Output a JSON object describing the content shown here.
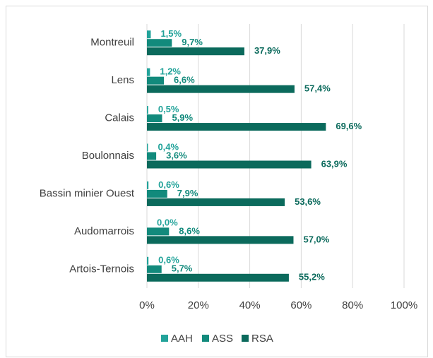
{
  "chart_data": {
    "type": "hbar",
    "categories": [
      "Montreuil",
      "Lens",
      "Calais",
      "Boulonnais",
      "Bassin minier Ouest",
      "Audomarrois",
      "Artois-Ternois"
    ],
    "series": [
      {
        "name": "AAH",
        "color": "#22a39a",
        "values": [
          1.5,
          1.2,
          0.5,
          0.4,
          0.6,
          0.0,
          0.6
        ],
        "value_labels": [
          "1,5%",
          "1,2%",
          "0,5%",
          "0,4%",
          "0,6%",
          "0,0%",
          "0,6%"
        ]
      },
      {
        "name": "ASS",
        "color": "#128a7c",
        "values": [
          9.7,
          6.6,
          5.9,
          3.6,
          7.9,
          8.6,
          5.7
        ],
        "value_labels": [
          "9,7%",
          "6,6%",
          "5,9%",
          "3,6%",
          "7,9%",
          "8,6%",
          "5,7%"
        ]
      },
      {
        "name": "RSA",
        "color": "#0b6a5c",
        "values": [
          37.9,
          57.4,
          69.6,
          63.9,
          53.6,
          57.0,
          55.2
        ],
        "value_labels": [
          "37,9%",
          "57,4%",
          "69,6%",
          "63,9%",
          "53,6%",
          "57,0%",
          "55,2%"
        ]
      }
    ],
    "xlim": [
      0,
      100
    ],
    "xticks": [
      {
        "value": 0,
        "label": "0%"
      },
      {
        "value": 20,
        "label": "20%"
      },
      {
        "value": 40,
        "label": "40%"
      },
      {
        "value": 60,
        "label": "60%"
      },
      {
        "value": 80,
        "label": "80%"
      },
      {
        "value": 100,
        "label": "100%"
      }
    ],
    "grid": true,
    "legend": "bottom"
  }
}
